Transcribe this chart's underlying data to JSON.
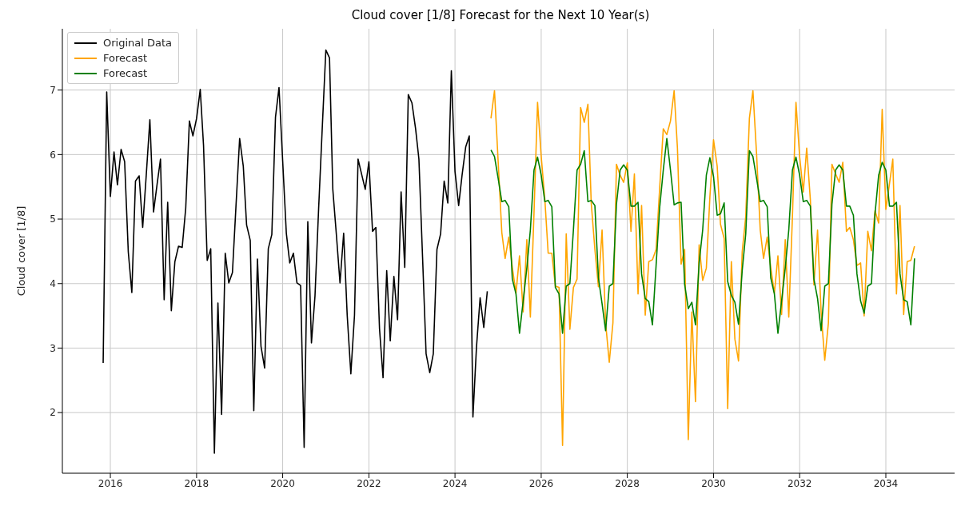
{
  "chart_data": {
    "type": "line",
    "title": "Cloud cover [1/8] Forecast for the Next 10 Year(s)",
    "ylabel": "Cloud cover [1/8]",
    "xlim": [
      "2014-11-20",
      "2035-08-07"
    ],
    "xticks": [
      "2016",
      "2018",
      "2020",
      "2022",
      "2024",
      "2026",
      "2028",
      "2030",
      "2032",
      "2034"
    ],
    "ylim": [
      1.06,
      7.95
    ],
    "yticks": [
      2,
      3,
      4,
      5,
      6,
      7
    ],
    "grid": true,
    "legend": "top left",
    "marker": "none",
    "line_style": "solid",
    "series": [
      {
        "name": "Original Data",
        "color": "#000000",
        "x": [
          "2015-11",
          "2015-12",
          "2016-01",
          "2016-02",
          "2016-03",
          "2016-04",
          "2016-05",
          "2016-06",
          "2016-07",
          "2016-08",
          "2016-09",
          "2016-10",
          "2016-11",
          "2016-12",
          "2017-01",
          "2017-02",
          "2017-03",
          "2017-04",
          "2017-05",
          "2017-06",
          "2017-07",
          "2017-08",
          "2017-09",
          "2017-10",
          "2017-11",
          "2017-12",
          "2018-01",
          "2018-02",
          "2018-03",
          "2018-04",
          "2018-05",
          "2018-06",
          "2018-07",
          "2018-08",
          "2018-09",
          "2018-10",
          "2018-11",
          "2018-12",
          "2019-01",
          "2019-02",
          "2019-03",
          "2019-04",
          "2019-05",
          "2019-06",
          "2019-07",
          "2019-08",
          "2019-09",
          "2019-10",
          "2019-11",
          "2019-12",
          "2020-01",
          "2020-02",
          "2020-03",
          "2020-04",
          "2020-05",
          "2020-06",
          "2020-07",
          "2020-08",
          "2020-09",
          "2020-10",
          "2020-11",
          "2020-12",
          "2021-01",
          "2021-02",
          "2021-03",
          "2021-04",
          "2021-05",
          "2021-06",
          "2021-07",
          "2021-08",
          "2021-09",
          "2021-10",
          "2021-11",
          "2021-12",
          "2022-01",
          "2022-02",
          "2022-03",
          "2022-04",
          "2022-05",
          "2022-06",
          "2022-07",
          "2022-08",
          "2022-09",
          "2022-10",
          "2022-11",
          "2022-12",
          "2023-01",
          "2023-02",
          "2023-03",
          "2023-04",
          "2023-05",
          "2023-06",
          "2023-07",
          "2023-08",
          "2023-09",
          "2023-10",
          "2023-11",
          "2023-12",
          "2024-01",
          "2024-02",
          "2024-03",
          "2024-04",
          "2024-05",
          "2024-06",
          "2024-07",
          "2024-08",
          "2024-09",
          "2024-10"
        ],
        "values": [
          2.77,
          6.97,
          5.35,
          6.04,
          5.53,
          6.08,
          5.89,
          4.49,
          3.86,
          5.59,
          5.67,
          4.87,
          5.7,
          6.54,
          5.11,
          5.55,
          5.93,
          3.75,
          5.26,
          3.58,
          4.34,
          4.58,
          4.56,
          5.17,
          6.52,
          6.29,
          6.56,
          7.01,
          6.14,
          4.36,
          4.54,
          1.37,
          3.7,
          1.97,
          4.47,
          4.01,
          4.17,
          5.2,
          6.25,
          5.82,
          4.91,
          4.67,
          2.03,
          4.38,
          3.03,
          2.69,
          4.54,
          4.76,
          6.58,
          7.04,
          5.9,
          4.78,
          4.32,
          4.47,
          4.01,
          3.97,
          1.46,
          4.96,
          3.08,
          3.81,
          5.17,
          6.39,
          7.62,
          7.5,
          5.46,
          4.74,
          4.01,
          4.78,
          3.51,
          2.6,
          3.51,
          5.93,
          5.69,
          5.46,
          5.89,
          4.81,
          4.87,
          3.3,
          2.54,
          4.2,
          3.11,
          4.11,
          3.44,
          5.42,
          4.25,
          6.93,
          6.8,
          6.4,
          5.93,
          4.41,
          2.91,
          2.62,
          2.91,
          4.53,
          4.77,
          5.59,
          5.25,
          7.3,
          5.74,
          5.21,
          5.68,
          6.12,
          6.29,
          1.93,
          3.01,
          3.78,
          3.32,
          3.88
        ]
      },
      {
        "name": "Forecast",
        "color": "#ffa500",
        "x": [
          "2024-11",
          "2024-12",
          "2025-01",
          "2025-02",
          "2025-03",
          "2025-04",
          "2025-05",
          "2025-06",
          "2025-07",
          "2025-08",
          "2025-09",
          "2025-10",
          "2025-11",
          "2025-12",
          "2026-01",
          "2026-02",
          "2026-03",
          "2026-04",
          "2026-05",
          "2026-06",
          "2026-07",
          "2026-08",
          "2026-09",
          "2026-10",
          "2026-11",
          "2026-12",
          "2027-01",
          "2027-02",
          "2027-03",
          "2027-04",
          "2027-05",
          "2027-06",
          "2027-07",
          "2027-08",
          "2027-09",
          "2027-10",
          "2027-11",
          "2027-12",
          "2028-01",
          "2028-02",
          "2028-03",
          "2028-04",
          "2028-05",
          "2028-06",
          "2028-07",
          "2028-08",
          "2028-09",
          "2028-10",
          "2028-11",
          "2028-12",
          "2029-01",
          "2029-02",
          "2029-03",
          "2029-04",
          "2029-05",
          "2029-06",
          "2029-07",
          "2029-08",
          "2029-09",
          "2029-10",
          "2029-11",
          "2029-12",
          "2030-01",
          "2030-02",
          "2030-03",
          "2030-04",
          "2030-05",
          "2030-06",
          "2030-07",
          "2030-08",
          "2030-09",
          "2030-10",
          "2030-11",
          "2030-12",
          "2031-01",
          "2031-02",
          "2031-03",
          "2031-04",
          "2031-05",
          "2031-06",
          "2031-07",
          "2031-08",
          "2031-09",
          "2031-10",
          "2031-11",
          "2031-12",
          "2032-01",
          "2032-02",
          "2032-03",
          "2032-04",
          "2032-05",
          "2032-06",
          "2032-07",
          "2032-08",
          "2032-09",
          "2032-10",
          "2032-11",
          "2032-12",
          "2033-01",
          "2033-02",
          "2033-03",
          "2033-04",
          "2033-05",
          "2033-06",
          "2033-07",
          "2033-08",
          "2033-09",
          "2033-10",
          "2033-11",
          "2033-12",
          "2034-01",
          "2034-02",
          "2034-03",
          "2034-04",
          "2034-05",
          "2034-06",
          "2034-07",
          "2034-08",
          "2034-09"
        ],
        "values": [
          6.56,
          6.99,
          5.89,
          4.79,
          4.39,
          4.72,
          4.25,
          3.85,
          4.43,
          3.56,
          4.68,
          3.48,
          5.1,
          6.81,
          5.97,
          5.3,
          4.47,
          4.47,
          3.96,
          3.94,
          1.49,
          4.77,
          3.29,
          3.94,
          4.07,
          6.73,
          6.5,
          6.78,
          5.25,
          4.53,
          3.95,
          4.83,
          3.39,
          2.78,
          3.39,
          5.85,
          5.68,
          5.57,
          5.87,
          4.81,
          5.7,
          3.84,
          5.21,
          3.51,
          4.34,
          4.37,
          4.53,
          5.47,
          6.4,
          6.31,
          6.52,
          6.99,
          6.1,
          4.3,
          4.53,
          1.58,
          3.56,
          2.17,
          4.6,
          4.05,
          4.24,
          5.34,
          6.23,
          5.82,
          4.92,
          4.7,
          2.06,
          4.34,
          3.14,
          2.8,
          4.49,
          5.04,
          6.56,
          6.99,
          6.01,
          4.83,
          4.39,
          4.72,
          4.25,
          3.85,
          4.43,
          3.52,
          4.68,
          3.48,
          5.04,
          6.81,
          5.97,
          5.42,
          6.1,
          5.3,
          3.98,
          4.83,
          3.56,
          2.81,
          3.39,
          5.85,
          5.7,
          5.57,
          5.88,
          4.81,
          4.87,
          4.68,
          4.28,
          4.32,
          3.5,
          4.81,
          4.51,
          5.13,
          4.94,
          6.7,
          5.15,
          5.55,
          5.93,
          3.84,
          5.21,
          3.52,
          4.34,
          4.36,
          4.58
        ]
      },
      {
        "name": "Forecast",
        "color": "#008000",
        "x": [
          "2024-11",
          "2024-12",
          "2025-01",
          "2025-02",
          "2025-03",
          "2025-04",
          "2025-05",
          "2025-06",
          "2025-07",
          "2025-08",
          "2025-09",
          "2025-10",
          "2025-11",
          "2025-12",
          "2026-01",
          "2026-02",
          "2026-03",
          "2026-04",
          "2026-05",
          "2026-06",
          "2026-07",
          "2026-08",
          "2026-09",
          "2026-10",
          "2026-11",
          "2026-12",
          "2027-01",
          "2027-02",
          "2027-03",
          "2027-04",
          "2027-05",
          "2027-06",
          "2027-07",
          "2027-08",
          "2027-09",
          "2027-10",
          "2027-11",
          "2027-12",
          "2028-01",
          "2028-02",
          "2028-03",
          "2028-04",
          "2028-05",
          "2028-06",
          "2028-07",
          "2028-08",
          "2028-09",
          "2028-10",
          "2028-11",
          "2028-12",
          "2029-01",
          "2029-02",
          "2029-03",
          "2029-04",
          "2029-05",
          "2029-06",
          "2029-07",
          "2029-08",
          "2029-09",
          "2029-10",
          "2029-11",
          "2029-12",
          "2030-01",
          "2030-02",
          "2030-03",
          "2030-04",
          "2030-05",
          "2030-06",
          "2030-07",
          "2030-08",
          "2030-09",
          "2030-10",
          "2030-11",
          "2030-12",
          "2031-01",
          "2031-02",
          "2031-03",
          "2031-04",
          "2031-05",
          "2031-06",
          "2031-07",
          "2031-08",
          "2031-09",
          "2031-10",
          "2031-11",
          "2031-12",
          "2032-01",
          "2032-02",
          "2032-03",
          "2032-04",
          "2032-05",
          "2032-06",
          "2032-07",
          "2032-08",
          "2032-09",
          "2032-10",
          "2032-11",
          "2032-12",
          "2033-01",
          "2033-02",
          "2033-03",
          "2033-04",
          "2033-05",
          "2033-06",
          "2033-07",
          "2033-08",
          "2033-09",
          "2033-10",
          "2033-11",
          "2033-12",
          "2034-01",
          "2034-02",
          "2034-03",
          "2034-04",
          "2034-05",
          "2034-06",
          "2034-07",
          "2034-08",
          "2034-09"
        ],
        "values": [
          6.07,
          5.97,
          5.63,
          5.27,
          5.29,
          5.19,
          4.07,
          3.84,
          3.23,
          3.73,
          4.24,
          4.83,
          5.76,
          5.96,
          5.68,
          5.27,
          5.29,
          5.19,
          3.94,
          3.84,
          3.23,
          3.96,
          4.0,
          4.83,
          5.76,
          5.85,
          6.06,
          5.27,
          5.29,
          5.21,
          4.09,
          3.69,
          3.27,
          3.96,
          4.0,
          5.23,
          5.76,
          5.84,
          5.76,
          5.2,
          5.2,
          5.26,
          4.15,
          3.77,
          3.72,
          3.36,
          4.28,
          5.17,
          5.76,
          6.25,
          5.76,
          5.22,
          5.25,
          5.26,
          3.99,
          3.61,
          3.71,
          3.36,
          4.32,
          4.83,
          5.68,
          5.95,
          5.66,
          5.06,
          5.08,
          5.25,
          4.03,
          3.82,
          3.71,
          3.37,
          4.2,
          4.77,
          6.06,
          5.97,
          5.63,
          5.27,
          5.29,
          5.19,
          4.09,
          3.84,
          3.23,
          3.73,
          4.24,
          4.83,
          5.76,
          5.96,
          5.68,
          5.27,
          5.29,
          5.2,
          4.07,
          3.77,
          3.27,
          3.96,
          4.0,
          5.23,
          5.76,
          5.84,
          5.76,
          5.2,
          5.2,
          5.06,
          4.15,
          3.73,
          3.54,
          3.96,
          4.0,
          5.08,
          5.68,
          5.88,
          5.76,
          5.2,
          5.2,
          5.26,
          4.15,
          3.75,
          3.72,
          3.36,
          4.39
        ]
      }
    ]
  }
}
